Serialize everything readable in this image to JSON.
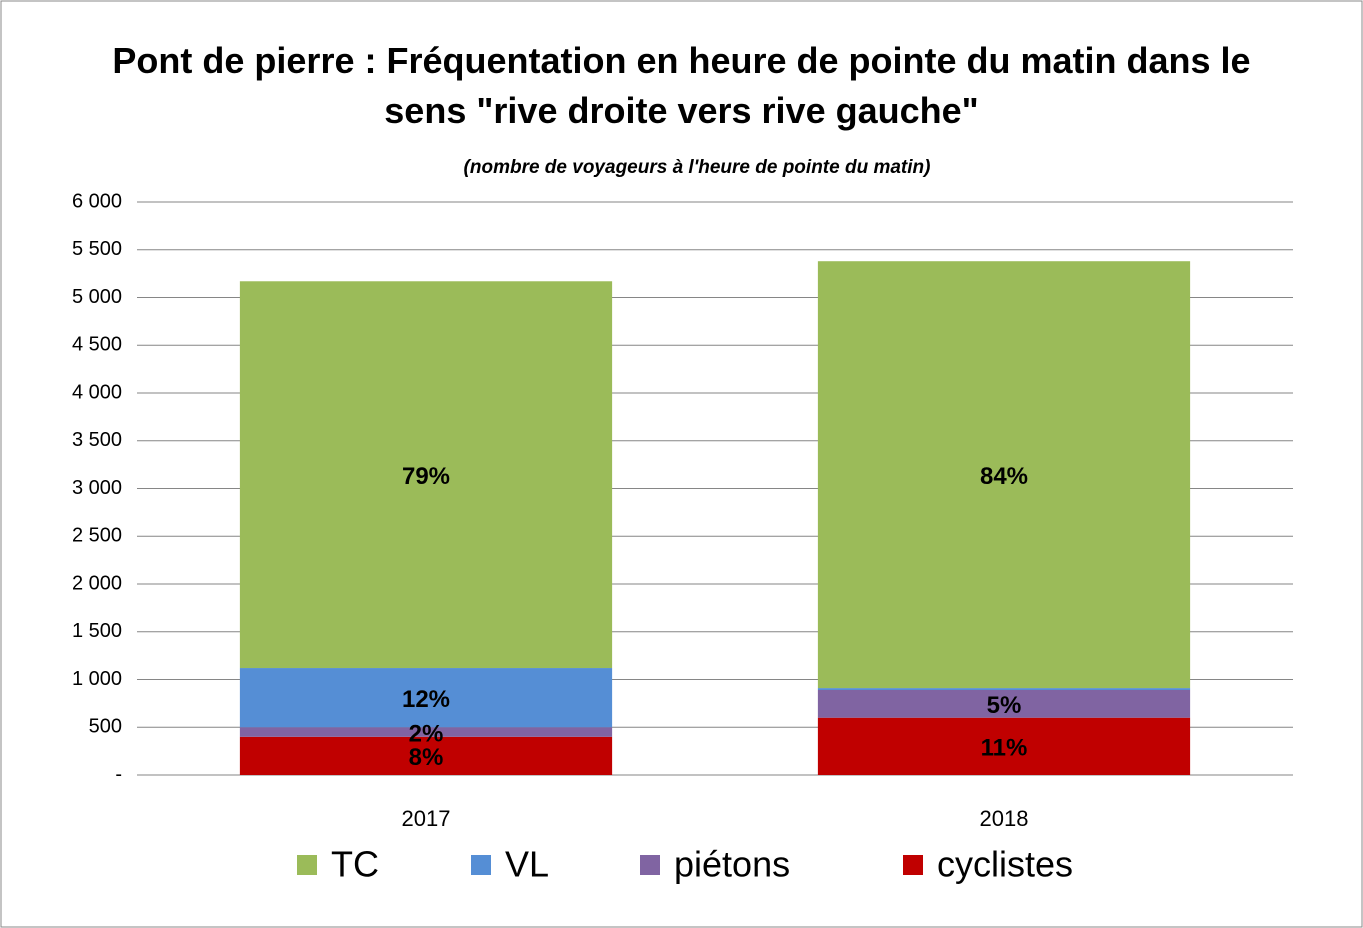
{
  "chart_data": {
    "type": "stacked_bar",
    "title": "Pont de pierre : Fréquentation en heure de pointe du matin dans le sens \"rive droite vers rive gauche\"",
    "subtitle": "(nombre de voyageurs à l'heure de pointe du matin)",
    "categories": [
      "2017",
      "2018"
    ],
    "series": [
      {
        "name": "cyclistes",
        "color": "#c00000",
        "values": [
          400,
          600
        ],
        "shares": [
          {
            "value": 8,
            "label": "8%"
          },
          {
            "value": 11,
            "label": "11%"
          }
        ]
      },
      {
        "name": "piétons",
        "color": "#8064a2",
        "values": [
          100,
          290
        ],
        "shares": [
          {
            "value": 2,
            "label": "2%"
          },
          {
            "value": 5,
            "label": "5%"
          }
        ]
      },
      {
        "name": "VL",
        "color": "#558ed5",
        "values": [
          620,
          20
        ],
        "shares": [
          {
            "value": 12,
            "label": "12%"
          },
          null
        ]
      },
      {
        "name": "TC",
        "color": "#9bbb59",
        "values": [
          4050,
          4470
        ],
        "shares": [
          {
            "value": 79,
            "label": "79%"
          },
          {
            "value": 84,
            "label": "84%"
          }
        ]
      }
    ],
    "legend_order": [
      3,
      2,
      1,
      0
    ],
    "ylim": [
      0,
      6000
    ],
    "yticks": [
      {
        "value": 0,
        "label": "-"
      },
      {
        "value": 500,
        "label": "500"
      },
      {
        "value": 1000,
        "label": "1 000"
      },
      {
        "value": 1500,
        "label": "1 500"
      },
      {
        "value": 2000,
        "label": "2 000"
      },
      {
        "value": 2500,
        "label": "2 500"
      },
      {
        "value": 3000,
        "label": "3 000"
      },
      {
        "value": 3500,
        "label": "3 500"
      },
      {
        "value": 4000,
        "label": "4 000"
      },
      {
        "value": 4500,
        "label": "4 500"
      },
      {
        "value": 5000,
        "label": "5 000"
      },
      {
        "value": 5500,
        "label": "5 500"
      },
      {
        "value": 6000,
        "label": "6 000"
      }
    ],
    "grid": true,
    "legend": "bottom"
  }
}
